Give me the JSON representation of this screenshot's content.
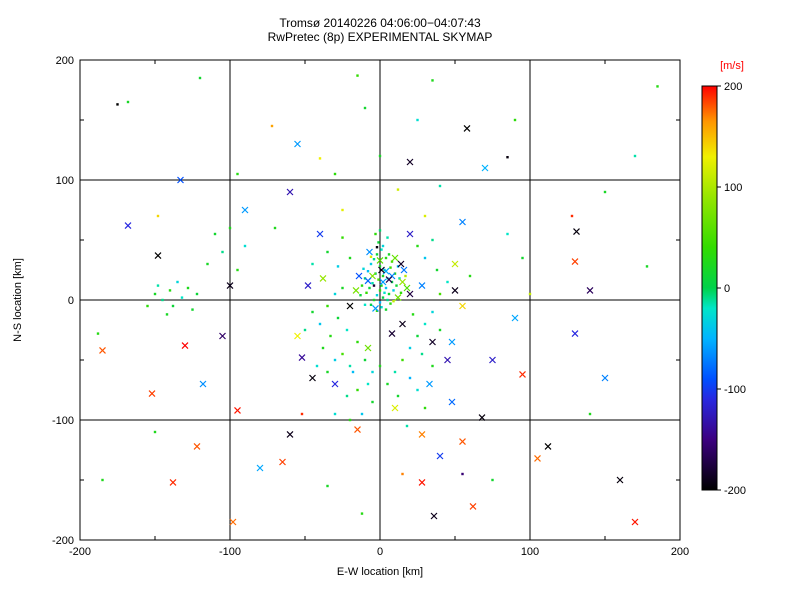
{
  "chart_data": {
    "type": "scatter",
    "title": "Tromsø 20140226 04:06:00−04:07:43",
    "subtitle": "RwPretec (8p) EXPERIMENTAL SKYMAP",
    "xlabel": "E-W location [km]",
    "ylabel": "N-S location [km]",
    "xlim": [
      -200,
      200
    ],
    "ylim": [
      -200,
      200
    ],
    "xticks": [
      -200,
      -100,
      0,
      100,
      200
    ],
    "yticks": [
      -200,
      -100,
      0,
      100,
      200
    ],
    "minor_ticks": [
      -150,
      -50,
      50,
      150
    ],
    "grid_values": [
      -100,
      0,
      100
    ],
    "grid": true,
    "background_color": "#ffffff",
    "axis_color": "#000000",
    "colorbar": {
      "label": "[m/s]",
      "label_color": "#ff0000",
      "ticks": [
        200,
        100,
        0,
        -100,
        -200
      ],
      "min": -200,
      "max": 200
    },
    "colormap": [
      [
        -200,
        "#000000"
      ],
      [
        -150,
        "#3c0080"
      ],
      [
        -110,
        "#2828e0"
      ],
      [
        -90,
        "#0050ff"
      ],
      [
        -50,
        "#00b4ff"
      ],
      [
        -20,
        "#00e6c8"
      ],
      [
        0,
        "#00d24b"
      ],
      [
        40,
        "#32dc00"
      ],
      [
        90,
        "#96e600"
      ],
      [
        130,
        "#f0f000"
      ],
      [
        165,
        "#ff9600"
      ],
      [
        200,
        "#ff0000"
      ]
    ],
    "points_format": [
      "x_km",
      "y_km",
      "velocity_ms",
      "marker(1=x-cross,0=dot)"
    ],
    "points": [
      [
        -2,
        38,
        10,
        0
      ],
      [
        1,
        42,
        -20,
        0
      ],
      [
        4,
        35,
        30,
        0
      ],
      [
        -6,
        30,
        -35,
        0
      ],
      [
        0,
        28,
        15,
        0
      ],
      [
        3,
        25,
        -10,
        0
      ],
      [
        7,
        27,
        45,
        0
      ],
      [
        -3,
        22,
        5,
        0
      ],
      [
        -8,
        24,
        -45,
        0
      ],
      [
        2,
        20,
        20,
        0
      ],
      [
        5,
        18,
        -25,
        0
      ],
      [
        -1,
        17,
        55,
        0
      ],
      [
        8,
        15,
        0,
        0
      ],
      [
        -5,
        14,
        -15,
        0
      ],
      [
        1,
        12,
        25,
        0
      ],
      [
        4,
        10,
        -40,
        0
      ],
      [
        -7,
        10,
        10,
        0
      ],
      [
        0,
        8,
        35,
        0
      ],
      [
        3,
        6,
        -20,
        0
      ],
      [
        6,
        5,
        15,
        0
      ],
      [
        -2,
        4,
        -30,
        0
      ],
      [
        -9,
        6,
        40,
        0
      ],
      [
        2,
        2,
        5,
        0
      ],
      [
        5,
        0,
        -10,
        0
      ],
      [
        -4,
        0,
        20,
        0
      ],
      [
        0,
        -2,
        -50,
        0
      ],
      [
        7,
        -3,
        30,
        0
      ],
      [
        -6,
        -4,
        0,
        0
      ],
      [
        1,
        -6,
        -25,
        0
      ],
      [
        4,
        -8,
        15,
        0
      ],
      [
        -2,
        -9,
        45,
        0
      ],
      [
        9,
        8,
        -35,
        0
      ],
      [
        11,
        12,
        10,
        0
      ],
      [
        13,
        18,
        -15,
        0
      ],
      [
        10,
        22,
        25,
        0
      ],
      [
        12,
        28,
        -45,
        0
      ],
      [
        14,
        6,
        35,
        0
      ],
      [
        -10,
        18,
        -5,
        0
      ],
      [
        -12,
        12,
        30,
        0
      ],
      [
        -11,
        26,
        -30,
        0
      ],
      [
        -13,
        4,
        10,
        0
      ],
      [
        -10,
        -4,
        -20,
        0
      ],
      [
        8,
        32,
        50,
        0
      ],
      [
        -4,
        34,
        -10,
        0
      ],
      [
        6,
        38,
        20,
        0
      ],
      [
        2,
        45,
        -30,
        0
      ],
      [
        -1,
        48,
        10,
        0
      ],
      [
        5,
        52,
        -15,
        0
      ],
      [
        -3,
        55,
        35,
        0
      ],
      [
        0,
        58,
        -5,
        0
      ],
      [
        2,
        15,
        -60,
        1
      ],
      [
        -5,
        20,
        80,
        1
      ],
      [
        8,
        20,
        -70,
        1
      ],
      [
        0,
        33,
        60,
        1
      ],
      [
        -8,
        16,
        -80,
        1
      ],
      [
        12,
        2,
        70,
        1
      ],
      [
        -3,
        -7,
        -60,
        1
      ],
      [
        15,
        15,
        90,
        1
      ],
      [
        -14,
        20,
        -90,
        1
      ],
      [
        4,
        24,
        -55,
        1
      ],
      [
        10,
        35,
        65,
        1
      ],
      [
        -7,
        40,
        -65,
        1
      ],
      [
        16,
        25,
        -75,
        1
      ],
      [
        18,
        10,
        55,
        1
      ],
      [
        -16,
        8,
        75,
        1
      ],
      [
        1,
        25,
        -190,
        1
      ],
      [
        -4,
        12,
        -180,
        0
      ],
      [
        6,
        17,
        -170,
        1
      ],
      [
        14,
        30,
        -185,
        1
      ],
      [
        20,
        5,
        -175,
        1
      ],
      [
        -2,
        44,
        -195,
        0
      ],
      [
        9,
        -1,
        110,
        0
      ],
      [
        -6,
        36,
        120,
        0
      ],
      [
        17,
        20,
        105,
        0
      ],
      [
        -25,
        10,
        20,
        0
      ],
      [
        -30,
        5,
        -30,
        0
      ],
      [
        -35,
        -5,
        40,
        0
      ],
      [
        -28,
        -15,
        10,
        0
      ],
      [
        -22,
        -25,
        -20,
        0
      ],
      [
        -33,
        -30,
        30,
        0
      ],
      [
        -40,
        -20,
        -40,
        0
      ],
      [
        -45,
        -10,
        15,
        0
      ],
      [
        -50,
        -25,
        -10,
        0
      ],
      [
        -38,
        -40,
        25,
        0
      ],
      [
        -30,
        -50,
        -35,
        0
      ],
      [
        -25,
        -45,
        50,
        0
      ],
      [
        -20,
        -55,
        -15,
        0
      ],
      [
        -35,
        -60,
        20,
        0
      ],
      [
        -42,
        -55,
        -25,
        0
      ],
      [
        -15,
        -35,
        35,
        0
      ],
      [
        -18,
        -60,
        -45,
        0
      ],
      [
        -10,
        -50,
        10,
        0
      ],
      [
        -5,
        -60,
        -30,
        0
      ],
      [
        0,
        -55,
        25,
        0
      ],
      [
        -8,
        -70,
        -20,
        0
      ],
      [
        -15,
        -75,
        40,
        0
      ],
      [
        -22,
        -80,
        -10,
        0
      ],
      [
        -5,
        -85,
        15,
        0
      ],
      [
        -12,
        -95,
        -40,
        0
      ],
      [
        -20,
        -100,
        30,
        0
      ],
      [
        -30,
        -95,
        -25,
        0
      ],
      [
        5,
        -70,
        20,
        0
      ],
      [
        10,
        -60,
        -15,
        0
      ],
      [
        15,
        -50,
        45,
        0
      ],
      [
        20,
        -40,
        -35,
        0
      ],
      [
        25,
        -30,
        10,
        0
      ],
      [
        30,
        -20,
        -20,
        0
      ],
      [
        22,
        -12,
        30,
        0
      ],
      [
        35,
        -10,
        -30,
        0
      ],
      [
        40,
        -25,
        20,
        0
      ],
      [
        28,
        -45,
        -10,
        0
      ],
      [
        35,
        -55,
        25,
        0
      ],
      [
        20,
        -65,
        -50,
        0
      ],
      [
        12,
        -80,
        15,
        0
      ],
      [
        25,
        -75,
        -25,
        0
      ],
      [
        30,
        -90,
        35,
        0
      ],
      [
        18,
        -105,
        -15,
        0
      ],
      [
        40,
        5,
        50,
        0
      ],
      [
        45,
        15,
        -20,
        0
      ],
      [
        38,
        25,
        15,
        0
      ],
      [
        30,
        35,
        -40,
        0
      ],
      [
        25,
        45,
        30,
        0
      ],
      [
        35,
        50,
        -10,
        0
      ],
      [
        -20,
        35,
        25,
        0
      ],
      [
        -28,
        28,
        -35,
        0
      ],
      [
        -35,
        40,
        15,
        0
      ],
      [
        -45,
        30,
        -15,
        0
      ],
      [
        -25,
        52,
        40,
        0
      ],
      [
        -48,
        12,
        -120,
        1
      ],
      [
        -55,
        -30,
        130,
        1
      ],
      [
        -30,
        -70,
        -110,
        1
      ],
      [
        10,
        -90,
        120,
        1
      ],
      [
        45,
        -50,
        -130,
        1
      ],
      [
        50,
        30,
        110,
        1
      ],
      [
        -40,
        55,
        -100,
        1
      ],
      [
        20,
        55,
        -120,
        1
      ],
      [
        55,
        -5,
        140,
        1
      ],
      [
        -52,
        -48,
        -140,
        1
      ],
      [
        33,
        -70,
        -60,
        1
      ],
      [
        -8,
        -40,
        70,
        1
      ],
      [
        48,
        -85,
        -80,
        1
      ],
      [
        -38,
        18,
        90,
        1
      ],
      [
        28,
        12,
        -70,
        1
      ],
      [
        -20,
        -5,
        -200,
        1
      ],
      [
        15,
        -20,
        -190,
        1
      ],
      [
        -45,
        -65,
        -195,
        1
      ],
      [
        35,
        -35,
        -185,
        1
      ],
      [
        8,
        -28,
        -180,
        1
      ],
      [
        50,
        8,
        -190,
        1
      ],
      [
        -15,
        -108,
        180,
        1
      ],
      [
        28,
        -112,
        170,
        1
      ],
      [
        -52,
        -95,
        190,
        0
      ],
      [
        -150,
        5,
        20,
        0
      ],
      [
        -145,
        0,
        -10,
        0
      ],
      [
        -140,
        8,
        30,
        0
      ],
      [
        -138,
        -5,
        10,
        0
      ],
      [
        -132,
        2,
        -20,
        0
      ],
      [
        -128,
        10,
        25,
        0
      ],
      [
        -125,
        -8,
        15,
        0
      ],
      [
        -135,
        15,
        -30,
        0
      ],
      [
        -142,
        -12,
        20,
        0
      ],
      [
        -155,
        -5,
        35,
        0
      ],
      [
        -148,
        12,
        -15,
        0
      ],
      [
        -122,
        5,
        10,
        0
      ],
      [
        -115,
        30,
        20,
        0
      ],
      [
        -105,
        40,
        -10,
        0
      ],
      [
        -95,
        25,
        30,
        0
      ],
      [
        -110,
        55,
        15,
        0
      ],
      [
        -90,
        45,
        -25,
        0
      ],
      [
        -100,
        60,
        25,
        0
      ],
      [
        -130,
        -38,
        200,
        1
      ],
      [
        -152,
        -78,
        185,
        1
      ],
      [
        -95,
        -92,
        195,
        1
      ],
      [
        -122,
        -122,
        180,
        1
      ],
      [
        -138,
        -152,
        190,
        1
      ],
      [
        -98,
        -185,
        175,
        1
      ],
      [
        -65,
        -135,
        185,
        1
      ],
      [
        28,
        -152,
        195,
        1
      ],
      [
        55,
        -118,
        180,
        1
      ],
      [
        95,
        -62,
        190,
        1
      ],
      [
        130,
        32,
        185,
        1
      ],
      [
        170,
        -185,
        195,
        1
      ],
      [
        -185,
        -42,
        180,
        1
      ],
      [
        62,
        -172,
        185,
        1
      ],
      [
        105,
        -132,
        175,
        1
      ],
      [
        128,
        70,
        190,
        0
      ],
      [
        -72,
        145,
        160,
        0
      ],
      [
        15,
        -145,
        170,
        0
      ],
      [
        58,
        143,
        -200,
        1
      ],
      [
        131,
        57,
        -195,
        1
      ],
      [
        -148,
        37,
        -200,
        1
      ],
      [
        -100,
        12,
        -190,
        1
      ],
      [
        68,
        -98,
        -195,
        1
      ],
      [
        112,
        -122,
        -200,
        1
      ],
      [
        -60,
        -112,
        -190,
        1
      ],
      [
        20,
        115,
        -185,
        1
      ],
      [
        160,
        -150,
        -195,
        1
      ],
      [
        -175,
        163,
        -200,
        0
      ],
      [
        85,
        119,
        -195,
        0
      ],
      [
        36,
        -180,
        -190,
        1
      ],
      [
        -168,
        62,
        -110,
        1
      ],
      [
        -133,
        100,
        -90,
        1
      ],
      [
        75,
        -50,
        -120,
        1
      ],
      [
        40,
        -130,
        -100,
        1
      ],
      [
        -60,
        90,
        -130,
        1
      ],
      [
        130,
        -28,
        -110,
        1
      ],
      [
        -90,
        75,
        -60,
        1
      ],
      [
        55,
        65,
        -70,
        1
      ],
      [
        90,
        -15,
        -55,
        1
      ],
      [
        -118,
        -70,
        -65,
        1
      ],
      [
        70,
        110,
        -50,
        1
      ],
      [
        -55,
        130,
        -60,
        1
      ],
      [
        150,
        -65,
        -70,
        1
      ],
      [
        48,
        -35,
        -60,
        1
      ],
      [
        -80,
        -140,
        -55,
        1
      ],
      [
        -15,
        187,
        40,
        0
      ],
      [
        35,
        183,
        25,
        0
      ],
      [
        -120,
        185,
        15,
        0
      ],
      [
        185,
        178,
        30,
        0
      ],
      [
        150,
        90,
        20,
        0
      ],
      [
        -185,
        -150,
        25,
        0
      ],
      [
        95,
        35,
        15,
        0
      ],
      [
        60,
        20,
        30,
        0
      ],
      [
        85,
        55,
        -20,
        0
      ],
      [
        -70,
        60,
        25,
        0
      ],
      [
        -95,
        105,
        30,
        0
      ],
      [
        40,
        95,
        -15,
        0
      ],
      [
        0,
        120,
        20,
        0
      ],
      [
        -30,
        105,
        35,
        0
      ],
      [
        25,
        150,
        -25,
        0
      ],
      [
        -10,
        160,
        15,
        0
      ],
      [
        178,
        28,
        20,
        0
      ],
      [
        -188,
        -28,
        30,
        0
      ],
      [
        140,
        -95,
        25,
        0
      ],
      [
        -35,
        -155,
        20,
        0
      ],
      [
        -12,
        -178,
        30,
        0
      ],
      [
        75,
        -150,
        15,
        0
      ],
      [
        -150,
        -110,
        25,
        0
      ],
      [
        90,
        150,
        35,
        0
      ],
      [
        170,
        120,
        -15,
        0
      ],
      [
        -168,
        165,
        20,
        0
      ],
      [
        -40,
        118,
        130,
        0
      ],
      [
        30,
        70,
        120,
        0
      ],
      [
        -148,
        70,
        140,
        0
      ],
      [
        100,
        5,
        110,
        0
      ],
      [
        -25,
        75,
        125,
        0
      ],
      [
        12,
        92,
        115,
        0
      ],
      [
        -105,
        -30,
        -160,
        1
      ],
      [
        55,
        -145,
        -155,
        0
      ],
      [
        140,
        8,
        -165,
        1
      ]
    ]
  }
}
